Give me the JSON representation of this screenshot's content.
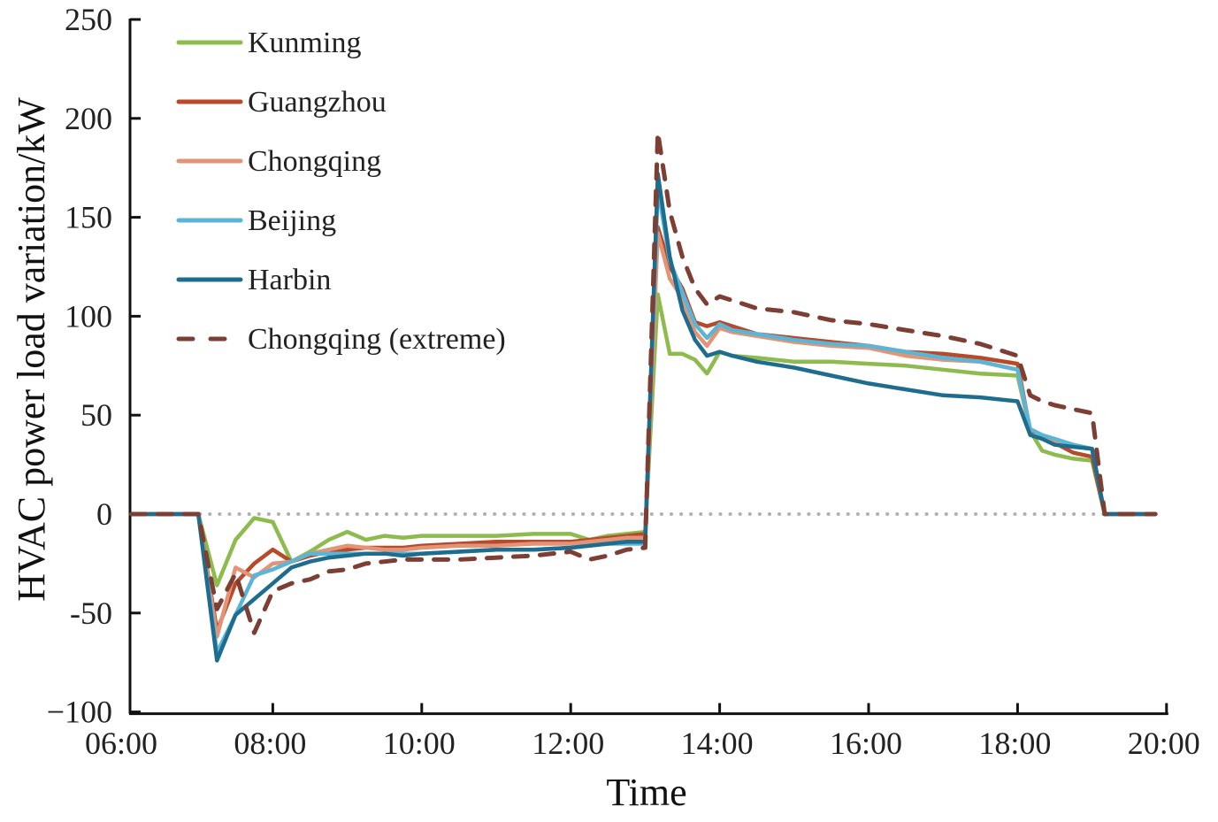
{
  "chart_data": {
    "type": "line",
    "title": "",
    "xlabel": "Time",
    "ylabel": "HVAC power load variation/kW",
    "xlim_hours": [
      6,
      20
    ],
    "ylim": [
      -100,
      250
    ],
    "x_ticks": [
      {
        "h": 6,
        "label": "06:00"
      },
      {
        "h": 8,
        "label": "08:00"
      },
      {
        "h": 10,
        "label": "10:00"
      },
      {
        "h": 12,
        "label": "12:00"
      },
      {
        "h": 14,
        "label": "14:00"
      },
      {
        "h": 16,
        "label": "16:00"
      },
      {
        "h": 18,
        "label": "18:00"
      },
      {
        "h": 20,
        "label": "20:00"
      }
    ],
    "y_ticks": [
      {
        "v": 250,
        "label": "250"
      },
      {
        "v": 200,
        "label": "200"
      },
      {
        "v": 150,
        "label": "150"
      },
      {
        "v": 100,
        "label": "100"
      },
      {
        "v": 50,
        "label": "50"
      },
      {
        "v": 0,
        "label": "0"
      },
      {
        "v": -50,
        "label": "-50"
      },
      {
        "v": -100,
        "label": "−100"
      }
    ],
    "grid": false,
    "zero_line": {
      "style": "dotted",
      "color": "#b0b0b0",
      "x_range_hours": [
        6.1,
        19.85
      ]
    },
    "legend": {
      "position": "top-left"
    },
    "x": [
      6.1,
      7.0,
      7.25,
      7.5,
      7.75,
      8.0,
      8.25,
      8.5,
      8.75,
      9.0,
      9.25,
      9.5,
      9.75,
      10.0,
      10.5,
      11.0,
      11.5,
      12.0,
      12.25,
      12.5,
      12.75,
      13.0,
      13.17,
      13.33,
      13.5,
      13.67,
      13.83,
      14.0,
      14.17,
      14.5,
      15.0,
      15.5,
      16.0,
      16.5,
      17.0,
      17.5,
      18.0,
      18.17,
      18.33,
      18.5,
      18.75,
      19.0,
      19.17,
      19.5,
      19.85
    ],
    "series": [
      {
        "name": "Kunming",
        "color": "#8dbb4e",
        "dash": false,
        "values": [
          0,
          0,
          -36,
          -13,
          -2,
          -4,
          -24,
          -19,
          -13,
          -9,
          -13,
          -11,
          -12,
          -11,
          -11,
          -11,
          -10,
          -10,
          -13,
          -11,
          -10,
          -9,
          111,
          81,
          81,
          78,
          71,
          82,
          80,
          79,
          77,
          77,
          76,
          75,
          73,
          71,
          70,
          42,
          32,
          30,
          28,
          27,
          0,
          0,
          0
        ]
      },
      {
        "name": "Guangzhou",
        "color": "#b64a2a",
        "dash": false,
        "values": [
          0,
          0,
          -59,
          -35,
          -25,
          -18,
          -24,
          -21,
          -19,
          -18,
          -17,
          -17,
          -17,
          -16,
          -15,
          -14,
          -14,
          -14,
          -13,
          -12,
          -11,
          -10,
          145,
          125,
          114,
          97,
          95,
          97,
          95,
          91,
          89,
          87,
          85,
          82,
          81,
          79,
          76,
          42,
          38,
          36,
          31,
          29,
          0,
          0,
          0
        ]
      },
      {
        "name": "Chongqing",
        "color": "#e39476",
        "dash": false,
        "values": [
          0,
          0,
          -62,
          -27,
          -32,
          -25,
          -24,
          -20,
          -18,
          -16,
          -17,
          -18,
          -18,
          -17,
          -16,
          -16,
          -15,
          -15,
          -14,
          -13,
          -12,
          -12,
          142,
          119,
          109,
          92,
          85,
          94,
          92,
          90,
          87,
          85,
          84,
          80,
          78,
          77,
          73,
          40,
          39,
          37,
          35,
          33,
          0,
          0,
          0
        ]
      },
      {
        "name": "Beijing",
        "color": "#5bb6d6",
        "dash": false,
        "values": [
          0,
          0,
          -70,
          -51,
          -31,
          -28,
          -24,
          -20,
          -20,
          -20,
          -20,
          -20,
          -20,
          -20,
          -19,
          -18,
          -18,
          -17,
          -16,
          -15,
          -15,
          -15,
          165,
          128,
          112,
          96,
          89,
          96,
          93,
          91,
          88,
          86,
          85,
          82,
          79,
          77,
          73,
          43,
          40,
          38,
          35,
          33,
          0,
          0,
          0
        ]
      },
      {
        "name": "Harbin",
        "color": "#1e6d8e",
        "dash": false,
        "values": [
          0,
          0,
          -74,
          -51,
          -43,
          -35,
          -27,
          -24,
          -22,
          -21,
          -20,
          -20,
          -21,
          -20,
          -19,
          -18,
          -18,
          -17,
          -16,
          -15,
          -14,
          -14,
          172,
          130,
          103,
          88,
          80,
          82,
          80,
          77,
          74,
          70,
          66,
          63,
          60,
          59,
          57,
          40,
          38,
          35,
          34,
          33,
          0,
          0,
          0
        ]
      },
      {
        "name": "Chongqing (extreme)",
        "color": "#7d3f34",
        "dash": true,
        "values": [
          0,
          0,
          -48,
          -30,
          -60,
          -39,
          -35,
          -33,
          -29,
          -28,
          -25,
          -24,
          -23,
          -23,
          -23,
          -22,
          -21,
          -19,
          -23,
          -21,
          -18,
          -17,
          193,
          153,
          130,
          114,
          106,
          110,
          108,
          104,
          102,
          98,
          96,
          93,
          90,
          86,
          80,
          60,
          57,
          55,
          53,
          51,
          0,
          0,
          0
        ]
      }
    ]
  }
}
